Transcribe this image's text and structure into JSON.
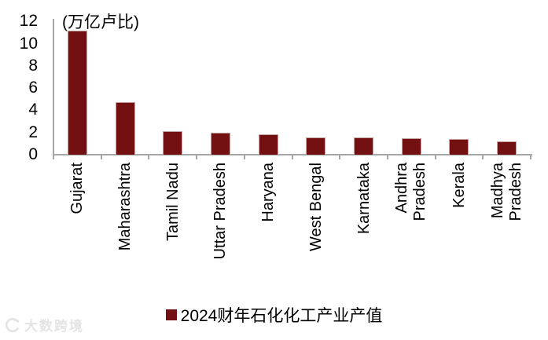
{
  "chart_data": {
    "type": "bar",
    "title": "",
    "unit_label": "(万亿卢比)",
    "categories": [
      "Gujarat",
      "Maharashtra",
      "Tamil Nadu",
      "Uttar Pradesh",
      "Haryana",
      "West Bengal",
      "Karnataka",
      "Andhra\nPradesh",
      "Kerala",
      "Madhya\nPradesh"
    ],
    "values": [
      11.2,
      4.7,
      2.1,
      2.0,
      1.85,
      1.55,
      1.55,
      1.45,
      1.4,
      1.2
    ],
    "series": [
      {
        "name": "2024财年石化化工产业产值",
        "values": [
          11.2,
          4.7,
          2.1,
          2.0,
          1.85,
          1.55,
          1.55,
          1.45,
          1.4,
          1.2
        ]
      }
    ],
    "xlabel": "",
    "ylabel": "(万亿卢比)",
    "ylim": [
      0,
      12
    ],
    "y_ticks": [
      0,
      2,
      4,
      6,
      8,
      10,
      12
    ],
    "grid": false,
    "legend_position": "bottom",
    "bar_color": "#731011",
    "bar_border_color": "#c9a2a2",
    "axis_color": "#a6a6a6"
  },
  "legend": {
    "label": "2024财年石化化工产业产值",
    "swatch_color": "#731011"
  },
  "watermark": {
    "text": "大数跨境"
  }
}
